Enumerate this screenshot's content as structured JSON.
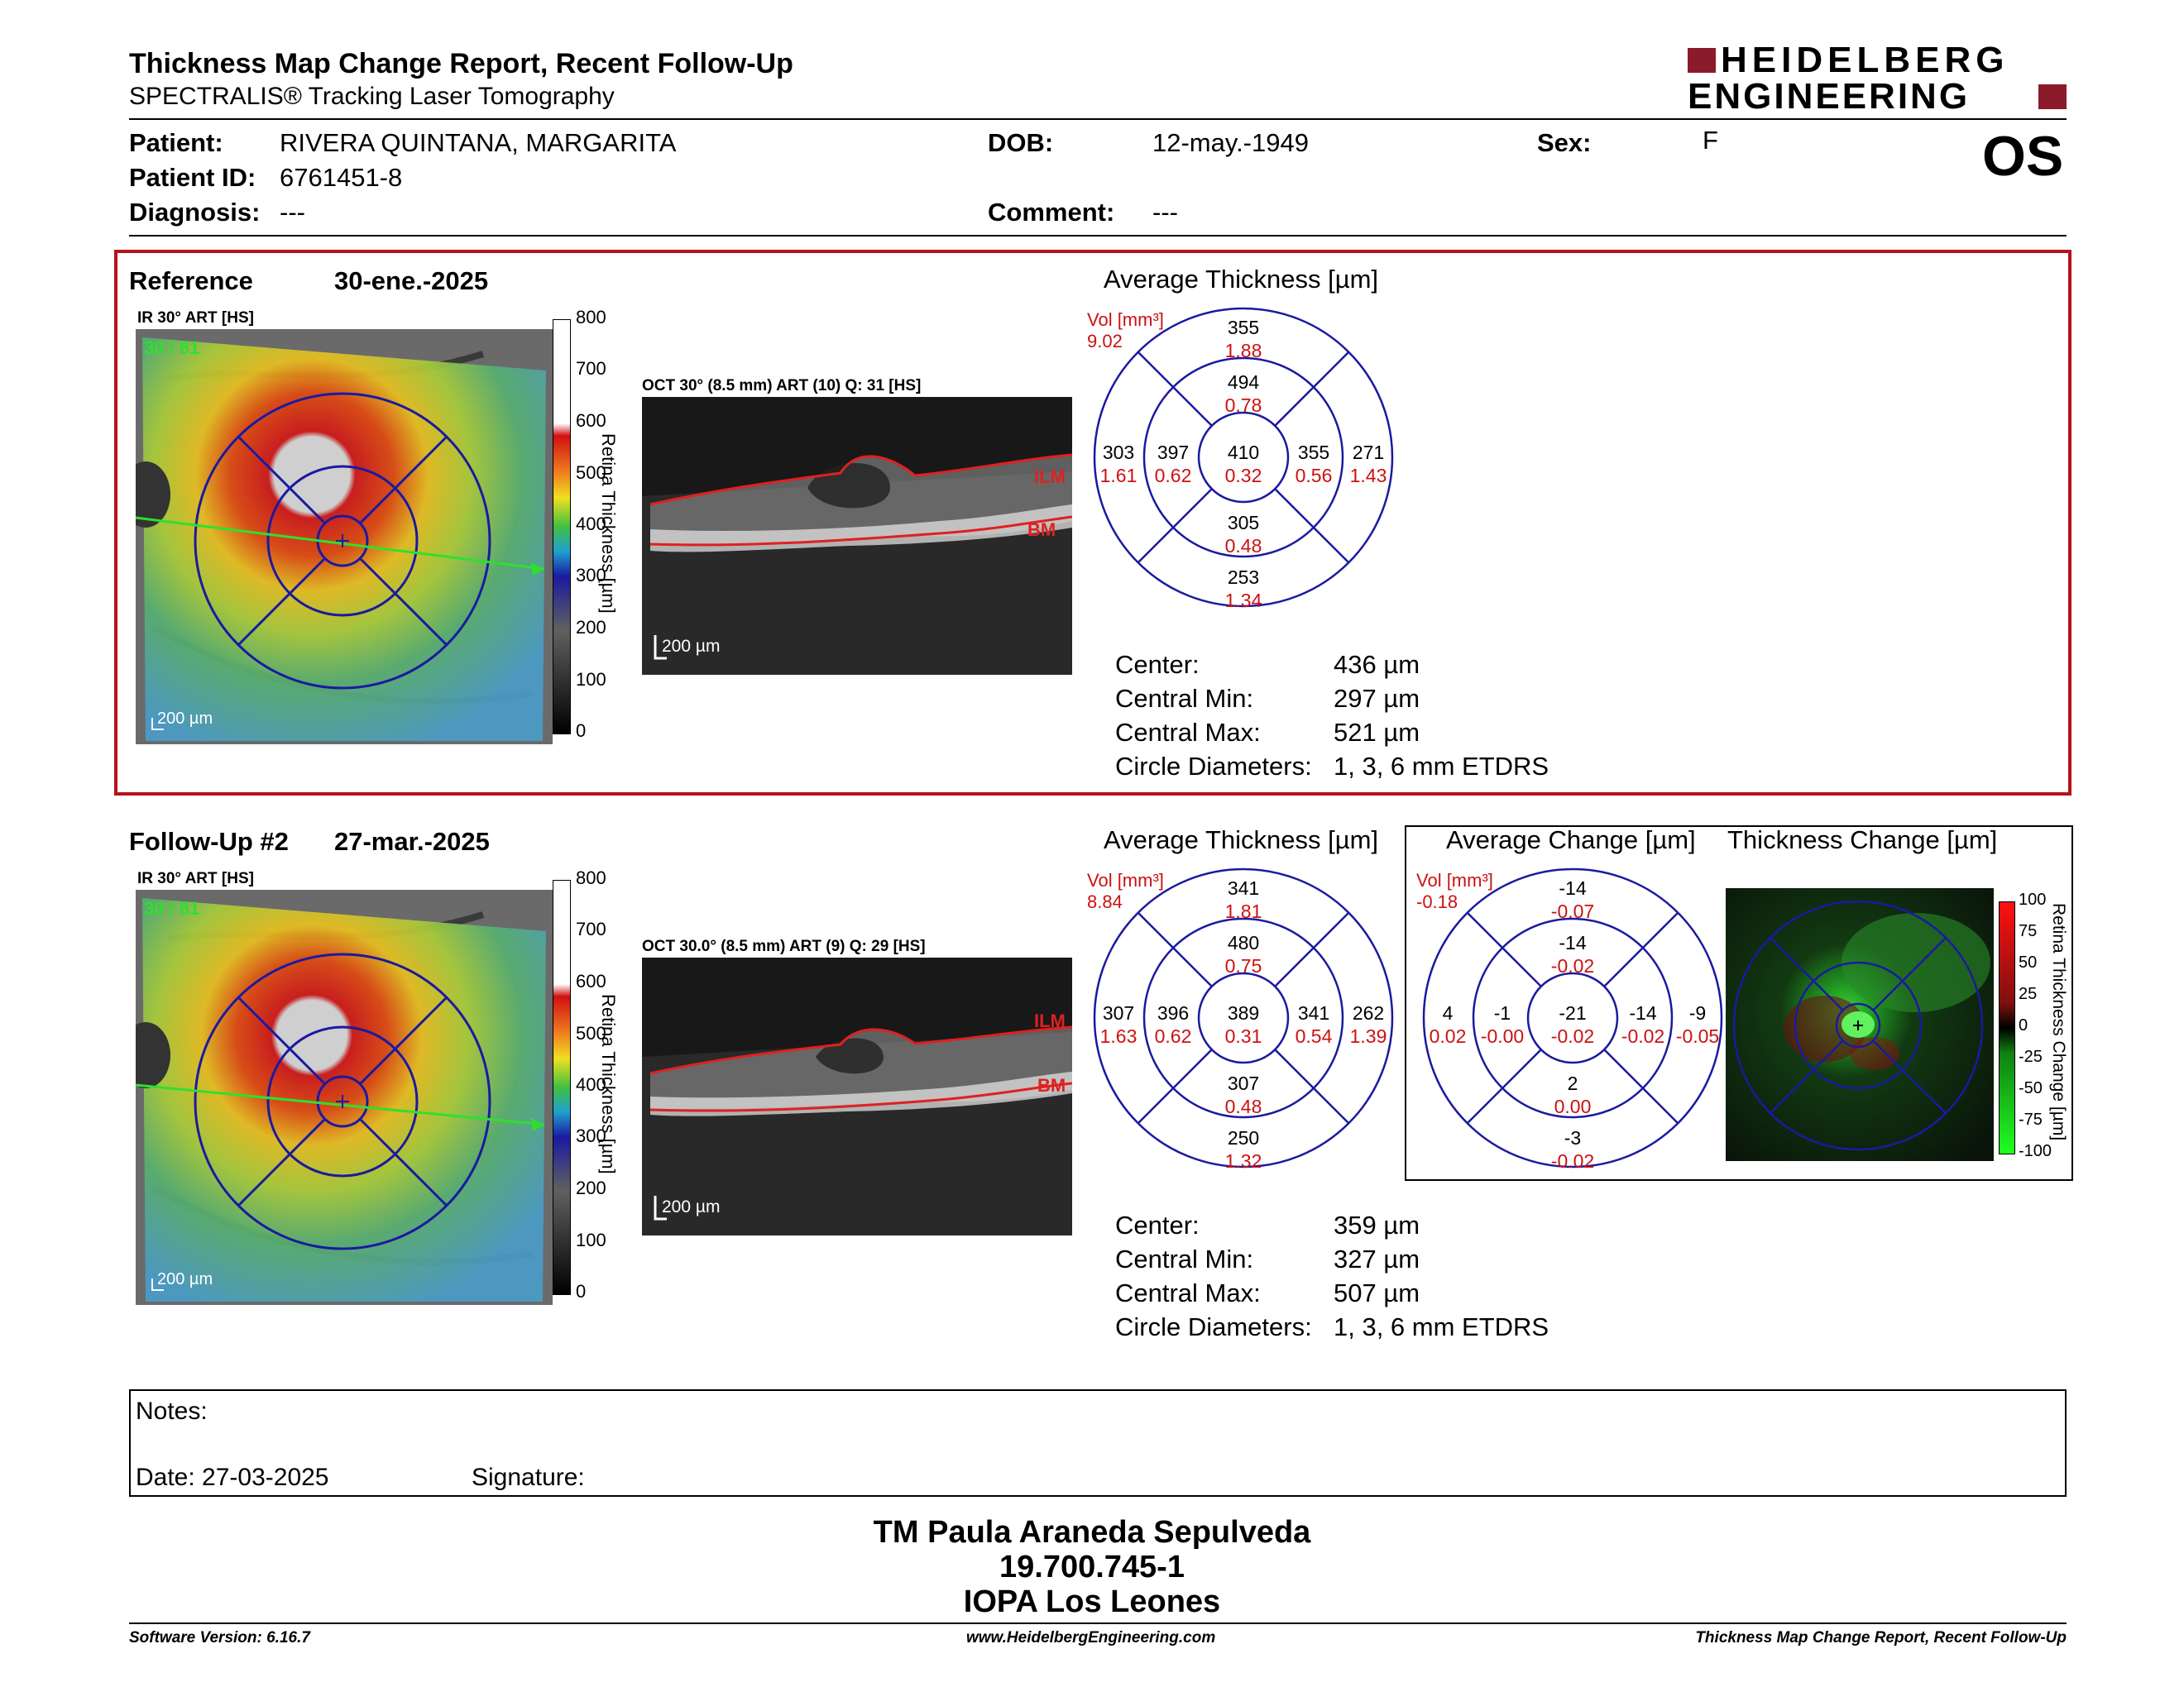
{
  "header": {
    "title": "Thickness Map Change Report, Recent Follow-Up",
    "subtitle": "SPECTRALIS® Tracking Laser Tomography",
    "logo_line1": "HEIDELBERG",
    "logo_line2": "ENGINEERING",
    "eye": "OS"
  },
  "patient": {
    "patient_label": "Patient:",
    "patient_value": "RIVERA QUINTANA, MARGARITA",
    "id_label": "Patient ID:",
    "id_value": "6761451-8",
    "diagnosis_label": "Diagnosis:",
    "diagnosis_value": "---",
    "dob_label": "DOB:",
    "dob_value": "12-may.-1949",
    "comment_label": "Comment:",
    "comment_value": "---",
    "sex_label": "Sex:",
    "sex_value": "F"
  },
  "reference": {
    "label": "Reference",
    "date": "30-ene.-2025",
    "ir_label": "IR 30° ART [HS]",
    "ir_overlay": "30 / 81",
    "scale_ir": "200 µm",
    "oct_label": "OCT 30° (8.5 mm) ART (10) Q: 31 [HS]",
    "scale_oct": "200 µm",
    "ilm": "ILM",
    "bm": "BM",
    "colorbar_title": "Retina Thickness [µm]",
    "colorbar_ticks": [
      "800",
      "700",
      "600",
      "500",
      "400",
      "300",
      "200",
      "100",
      "0"
    ],
    "avg_title": "Average Thickness [µm]",
    "vol_label": "Vol [mm³]",
    "vol_value": "9.02",
    "etdrs": {
      "superior_outer": [
        "355",
        "1.88"
      ],
      "superior_inner": [
        "494",
        "0.78"
      ],
      "temporal_outer": [
        "303",
        "1.61"
      ],
      "temporal_inner": [
        "397",
        "0.62"
      ],
      "center": [
        "410",
        "0.32"
      ],
      "nasal_inner": [
        "355",
        "0.56"
      ],
      "nasal_outer": [
        "271",
        "1.43"
      ],
      "inferior_inner": [
        "305",
        "0.48"
      ],
      "inferior_outer": [
        "253",
        "1.34"
      ]
    },
    "stats": {
      "center_label": "Center:",
      "center_value": "436 µm",
      "min_label": "Central Min:",
      "min_value": "297 µm",
      "max_label": "Central Max:",
      "max_value": "521 µm",
      "diam_label": "Circle Diameters:",
      "diam_value": "1, 3, 6 mm ETDRS"
    }
  },
  "followup": {
    "label": "Follow-Up #2",
    "date": "27-mar.-2025",
    "ir_label": "IR 30° ART [HS]",
    "ir_overlay": "30 / 81",
    "scale_ir": "200 µm",
    "oct_label": "OCT 30.0° (8.5 mm) ART (9) Q: 29 [HS]",
    "scale_oct": "200 µm",
    "ilm": "ILM",
    "bm": "BM",
    "colorbar_title": "Retina Thickness [µm]",
    "colorbar_ticks": [
      "800",
      "700",
      "600",
      "500",
      "400",
      "300",
      "200",
      "100",
      "0"
    ],
    "avg_title": "Average Thickness [µm]",
    "vol_label": "Vol [mm³]",
    "vol_value": "8.84",
    "etdrs": {
      "superior_outer": [
        "341",
        "1.81"
      ],
      "superior_inner": [
        "480",
        "0.75"
      ],
      "temporal_outer": [
        "307",
        "1.63"
      ],
      "temporal_inner": [
        "396",
        "0.62"
      ],
      "center": [
        "389",
        "0.31"
      ],
      "nasal_inner": [
        "341",
        "0.54"
      ],
      "nasal_outer": [
        "262",
        "1.39"
      ],
      "inferior_inner": [
        "307",
        "0.48"
      ],
      "inferior_outer": [
        "250",
        "1.32"
      ]
    },
    "stats": {
      "center_label": "Center:",
      "center_value": "359 µm",
      "min_label": "Central Min:",
      "min_value": "327 µm",
      "max_label": "Central Max:",
      "max_value": "507 µm",
      "diam_label": "Circle Diameters:",
      "diam_value": "1, 3, 6 mm ETDRS"
    },
    "change_title": "Average Change [µm]",
    "change_vol_label": "Vol [mm³]",
    "change_vol_value": "-0.18",
    "change": {
      "superior_outer": [
        "-14",
        "-0.07"
      ],
      "superior_inner": [
        "-14",
        "-0.02"
      ],
      "temporal_outer": [
        "4",
        "0.02"
      ],
      "temporal_inner": [
        "-1",
        "-0.00"
      ],
      "center": [
        "-21",
        "-0.02"
      ],
      "nasal_inner": [
        "-14",
        "-0.02"
      ],
      "nasal_outer": [
        "-9",
        "-0.05"
      ],
      "inferior_inner": [
        "2",
        "0.00"
      ],
      "inferior_outer": [
        "-3",
        "-0.02"
      ]
    },
    "thick_change_title": "Thickness Change [µm]",
    "change_bar_title": "Retina Thickness Change [µm]",
    "change_ticks": [
      "100",
      "75",
      "50",
      "25",
      "0",
      "-25",
      "-50",
      "-75",
      "-100"
    ]
  },
  "notes": {
    "notes_label": "Notes:",
    "date_label": "Date: 27-03-2025",
    "signature_label": "Signature:"
  },
  "signer": {
    "name": "TM Paula Araneda Sepulveda",
    "id": "19.700.745-1",
    "institution": "IOPA Los Leones"
  },
  "footer": {
    "left": "Software Version: 6.16.7",
    "center": "www.HeidelbergEngineering.com",
    "right": "Thickness Map Change Report, Recent Follow-Up"
  },
  "colors": {
    "navy": "#1a1aa0",
    "red_text": "#cc1111",
    "frame_red": "#b5121b",
    "brand": "#8b1a2b"
  }
}
